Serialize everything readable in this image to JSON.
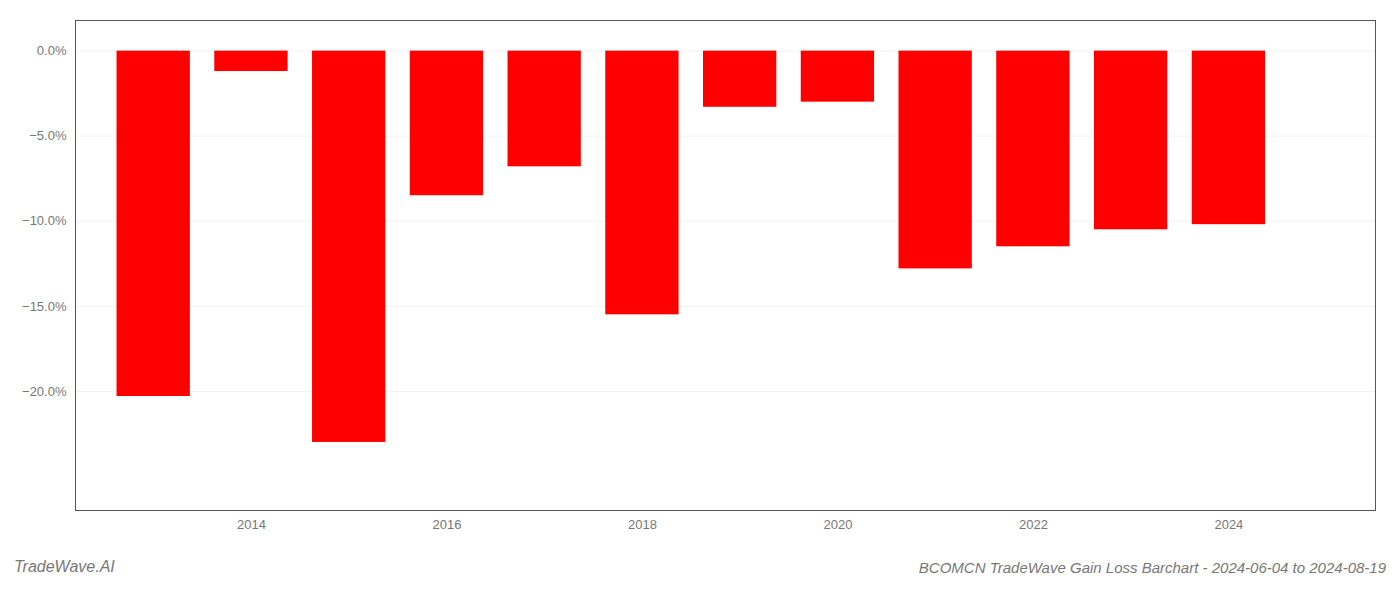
{
  "chart_data": {
    "type": "bar",
    "title": "BCOMCN TradeWave Gain Loss Barchart - 2024-06-04 to 2024-08-19",
    "annotations": [
      "TradeWave.AI"
    ],
    "x": [
      2013,
      2014,
      2015,
      2016,
      2017,
      2018,
      2019,
      2020,
      2021,
      2022,
      2023,
      2024
    ],
    "values": [
      -20.3,
      -1.2,
      -23.0,
      -8.5,
      -6.8,
      -15.5,
      -3.3,
      -3.0,
      -12.8,
      -11.5,
      -10.5,
      -10.2
    ],
    "color": "#ff0000",
    "xlim": [
      2012.2,
      2025.5
    ],
    "xticks": [
      2014,
      2016,
      2018,
      2020,
      2022,
      2024
    ],
    "ylim": [
      -27,
      1.8
    ],
    "yticks": [
      {
        "value": 0.0,
        "label": "0.0%"
      },
      {
        "value": -5.0,
        "label": "−5.0%"
      },
      {
        "value": -10.0,
        "label": "−10.0%"
      },
      {
        "value": -15.0,
        "label": "−15.0%"
      },
      {
        "value": -20.0,
        "label": "−20.0%"
      }
    ],
    "grid": true
  }
}
